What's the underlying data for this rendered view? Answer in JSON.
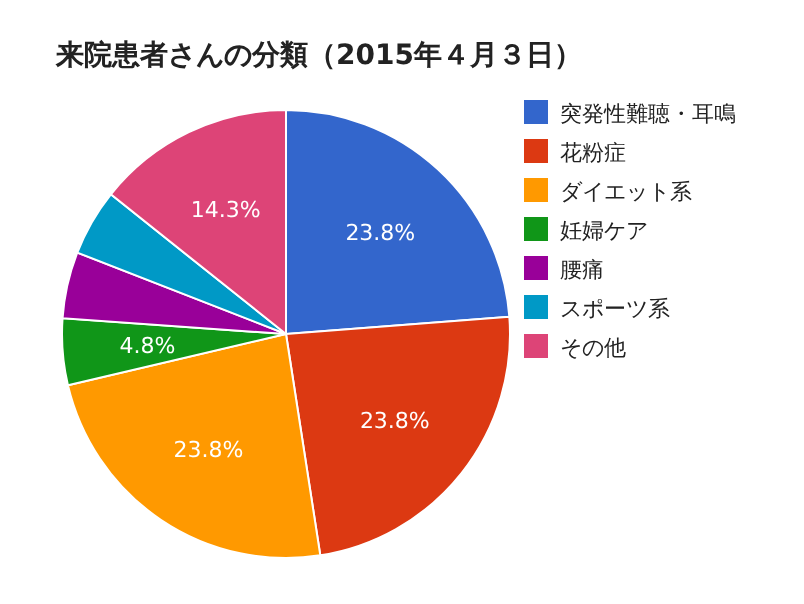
{
  "chart_data": {
    "type": "pie",
    "title": "来院患者さんの分類（2015年４月３日）",
    "categories": [
      "突発性難聴・耳鳴",
      "花粉症",
      "ダイエット系",
      "妊婦ケア",
      "腰痛",
      "スポーツ系",
      "その他"
    ],
    "values": [
      23.8,
      23.8,
      23.8,
      4.8,
      4.8,
      4.8,
      14.3
    ],
    "value_labels": [
      "23.8%",
      "23.8%",
      "23.8%",
      "4.8%",
      null,
      null,
      "14.3%"
    ],
    "colors": [
      "#3366cc",
      "#dc3912",
      "#ff9900",
      "#109618",
      "#990099",
      "#0099c6",
      "#dd4477"
    ],
    "legend": "right"
  }
}
